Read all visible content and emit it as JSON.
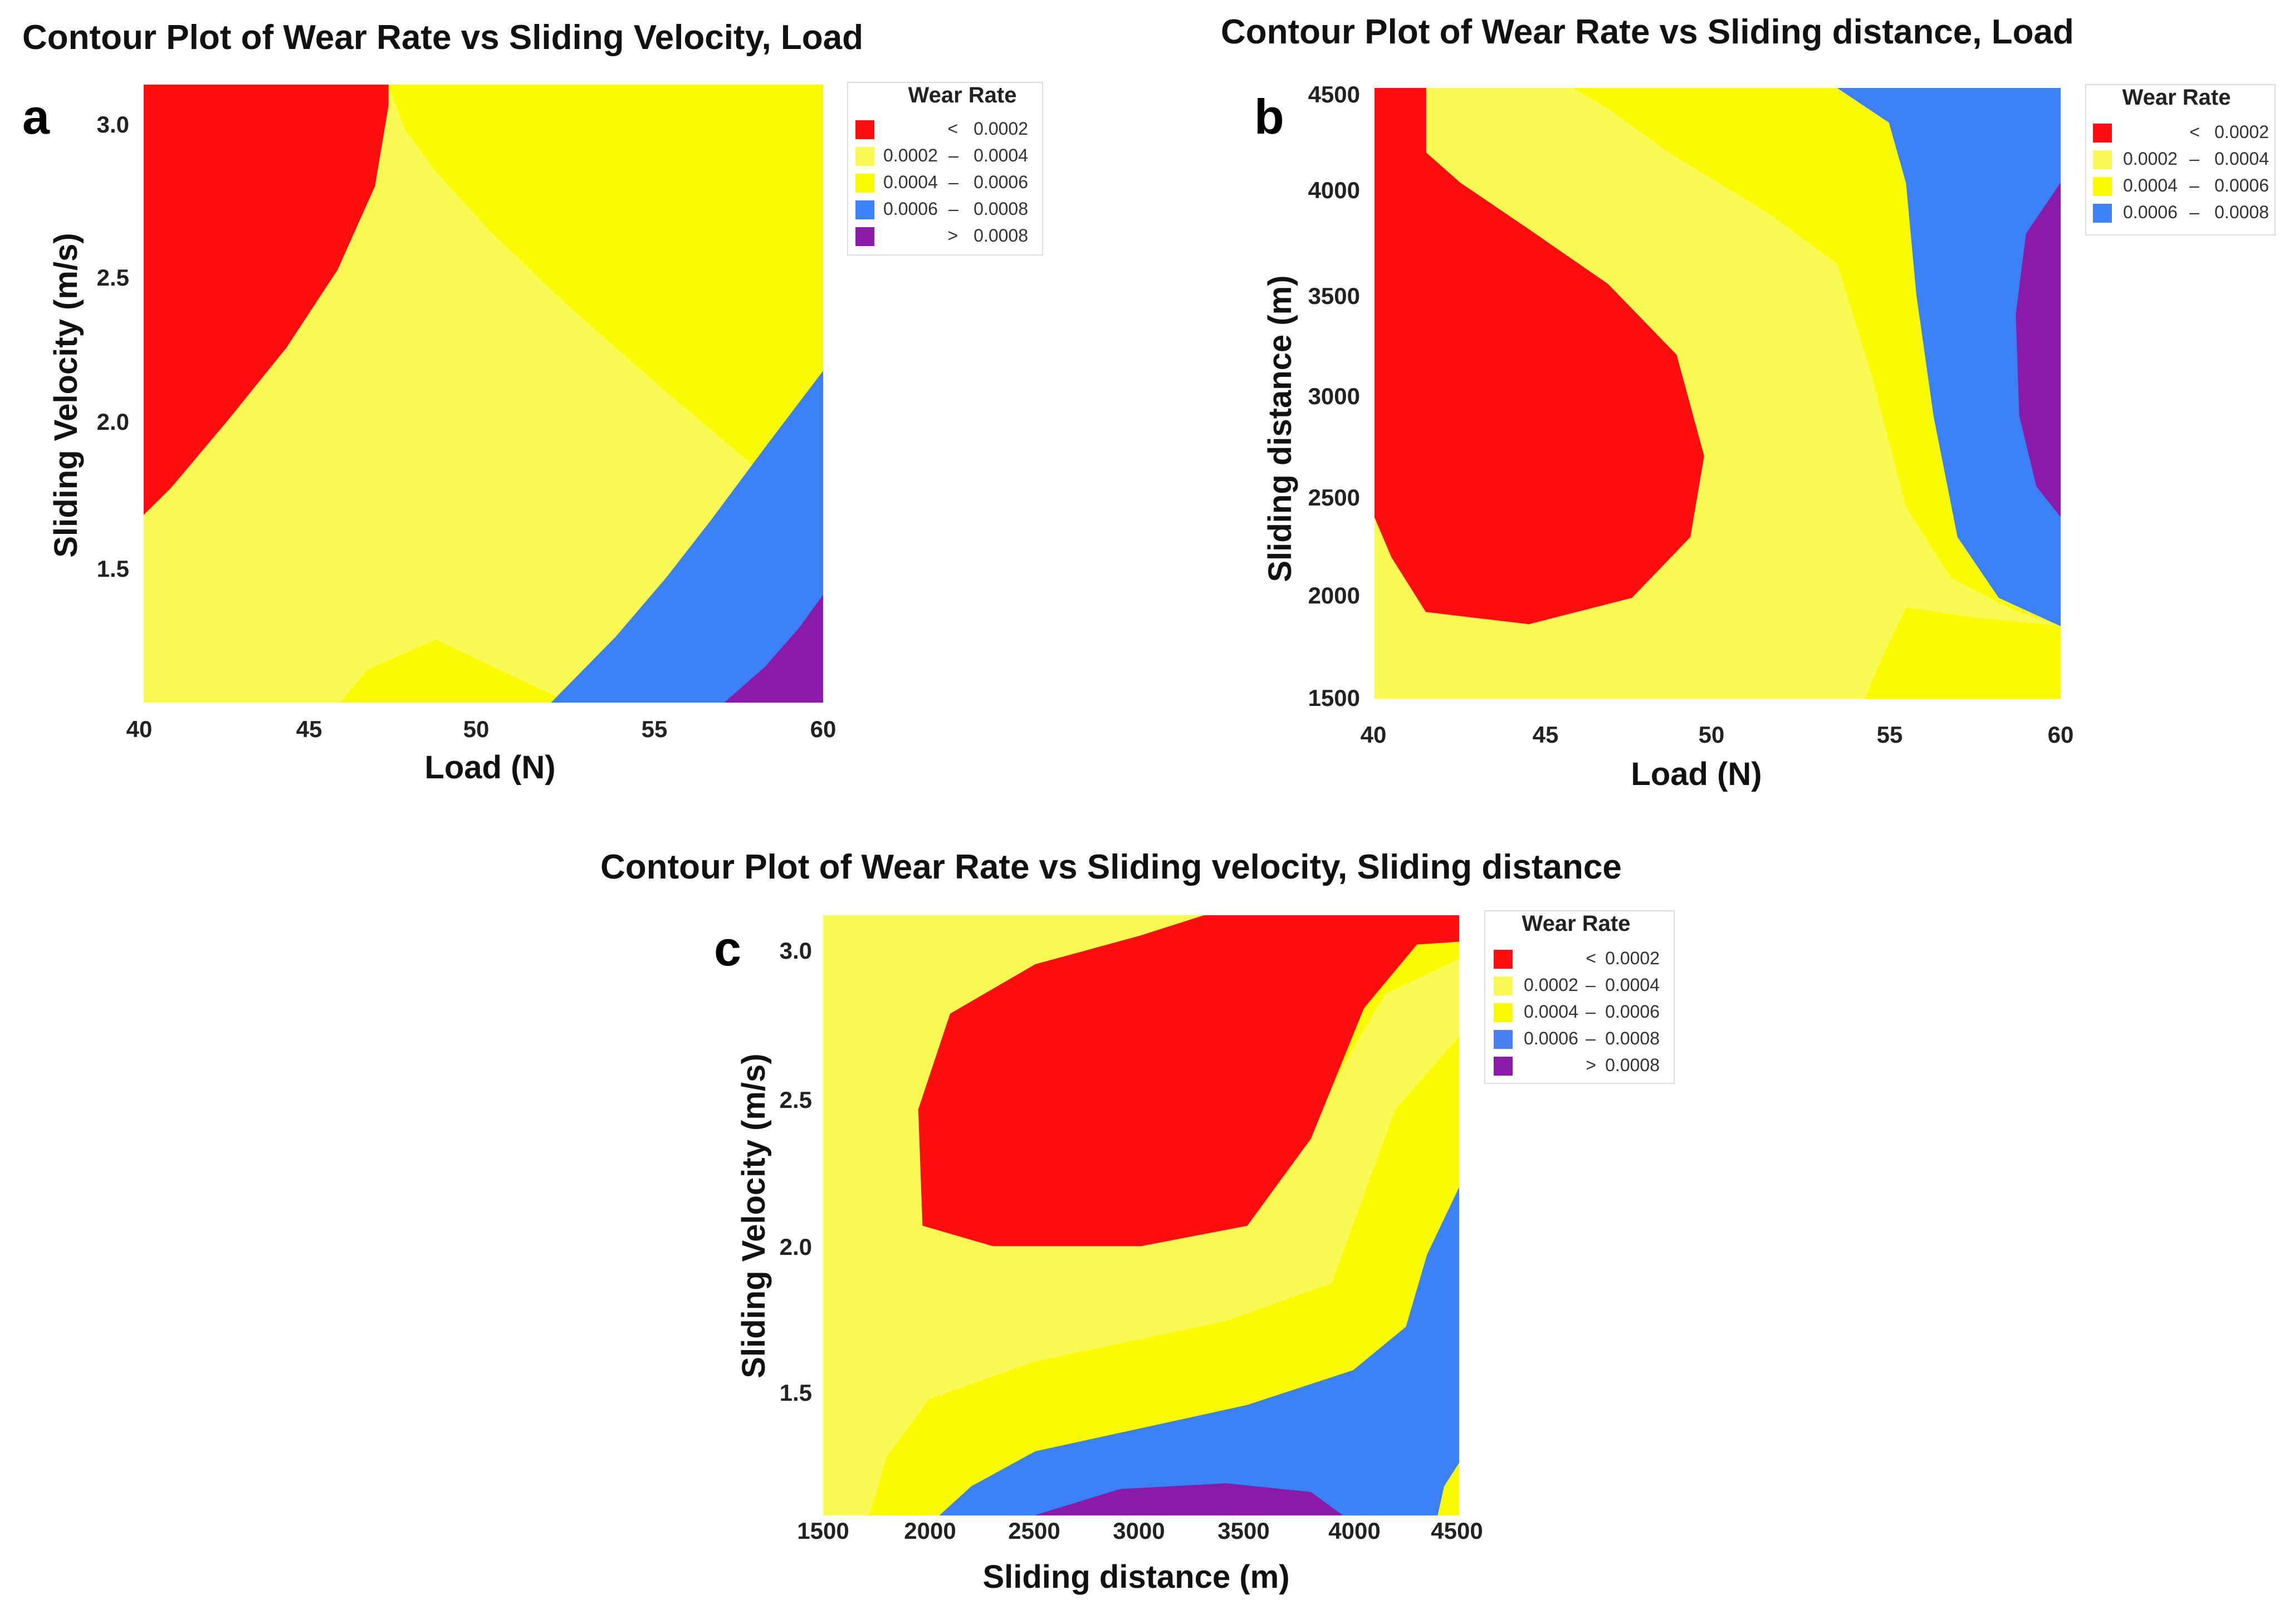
{
  "colors": {
    "lt_0002": "#ff0d0d",
    "r_0002_0004": "#fafa55",
    "r_0004_0006": "#fafa00",
    "r_0006_0008": "#3b80f5",
    "gt_0008": "#8b1aa8",
    "legend_blue_c": "#4a7ff2"
  },
  "chart_data": [
    {
      "panel": "a",
      "type": "contour",
      "title": "Contour Plot of Wear Rate vs Sliding Velocity, Load",
      "xlabel": "Load (N)",
      "ylabel": "Sliding Velocity (m/s)",
      "xlim": [
        40,
        60
      ],
      "ylim": [
        1.05,
        3.12
      ],
      "xticks": [
        "40",
        "45",
        "50",
        "55",
        "60"
      ],
      "yticks": [
        "1.5",
        "2.0",
        "2.5",
        "3.0"
      ],
      "legend": {
        "title": "Wear Rate",
        "entries": [
          {
            "lo": "<",
            "hi": "0.0002",
            "color_key": "lt_0002"
          },
          {
            "lo": "0.0002",
            "hi": "0.0004",
            "color_key": "r_0002_0004"
          },
          {
            "lo": "0.0004",
            "hi": "0.0006",
            "color_key": "r_0004_0006"
          },
          {
            "lo": "0.0006",
            "hi": "0.0008",
            "color_key": "r_0006_0008"
          },
          {
            "lo": ">",
            "hi": "0.0008",
            "color_key": "gt_0008"
          }
        ]
      },
      "regions": [
        {
          "level": "0.0002 - 0.0004",
          "color_key": "r_0002_0004",
          "points": [
            [
              40,
              1.05
            ],
            [
              60,
              1.05
            ],
            [
              60,
              3.12
            ],
            [
              40,
              3.12
            ]
          ]
        },
        {
          "level": "0.0004 - 0.0006",
          "color_key": "r_0004_0006",
          "points": [
            [
              45.8,
              1.05
            ],
            [
              60,
              1.05
            ],
            [
              60,
              3.12
            ],
            [
              47.2,
              3.12
            ],
            [
              47.7,
              2.97
            ],
            [
              48.6,
              2.83
            ],
            [
              50.2,
              2.63
            ],
            [
              52.5,
              2.38
            ],
            [
              55.3,
              2.1
            ],
            [
              58,
              1.84
            ],
            [
              60,
              1.66
            ],
            [
              60,
              3.12
            ],
            [
              60,
              1.05
            ],
            [
              52.5,
              1.05
            ],
            [
              48.6,
              1.26
            ],
            [
              46.6,
              1.16
            ]
          ]
        },
        {
          "level": "< 0.0002",
          "color_key": "lt_0002",
          "points": [
            [
              40,
              3.12
            ],
            [
              47.2,
              3.12
            ],
            [
              47.2,
              3.05
            ],
            [
              46.8,
              2.78
            ],
            [
              45.7,
              2.5
            ],
            [
              44.2,
              2.24
            ],
            [
              42.5,
              2.0
            ],
            [
              40.8,
              1.77
            ],
            [
              40,
              1.68
            ]
          ]
        },
        {
          "level": "0.0006 - 0.0008",
          "color_key": "r_0006_0008",
          "points": [
            [
              52,
              1.05
            ],
            [
              60,
              1.05
            ],
            [
              60,
              2.16
            ],
            [
              58.4,
              1.92
            ],
            [
              56.7,
              1.66
            ],
            [
              55.4,
              1.47
            ],
            [
              53.9,
              1.27
            ]
          ]
        },
        {
          "level": "> 0.0008",
          "color_key": "gt_0008",
          "points": [
            [
              57.1,
              1.05
            ],
            [
              60,
              1.05
            ],
            [
              60,
              1.41
            ],
            [
              59.3,
              1.3
            ],
            [
              58.3,
              1.17
            ]
          ]
        }
      ]
    },
    {
      "panel": "b",
      "type": "contour",
      "title": "Contour Plot of Wear Rate vs Sliding distance, Load",
      "xlabel": "Load (N)",
      "ylabel": "Sliding distance (m)",
      "xlim": [
        40,
        60
      ],
      "ylim": [
        1500,
        4520
      ],
      "xticks": [
        "40",
        "45",
        "50",
        "55",
        "60"
      ],
      "yticks": [
        "1500",
        "2000",
        "2500",
        "3000",
        "3500",
        "4000",
        "4500"
      ],
      "legend": {
        "title": "Wear Rate",
        "entries": [
          {
            "lo": "<",
            "hi": "0.0002",
            "color_key": "lt_0002"
          },
          {
            "lo": "0.0002",
            "hi": "0.0004",
            "color_key": "r_0002_0004"
          },
          {
            "lo": "0.0004",
            "hi": "0.0006",
            "color_key": "r_0004_0006"
          },
          {
            "lo": "0.0006",
            "hi": "0.0008",
            "color_key": "r_0006_0008"
          }
        ]
      },
      "regions": [
        {
          "level": "0.0002 - 0.0004",
          "color_key": "r_0002_0004",
          "points": [
            [
              40,
              1500
            ],
            [
              60,
              1500
            ],
            [
              60,
              4520
            ],
            [
              40,
              4520
            ]
          ]
        },
        {
          "level": "0.0004 - 0.0006",
          "color_key": "r_0004_0006",
          "points": [
            [
              45.8,
              4520
            ],
            [
              60,
              4520
            ],
            [
              60,
              1860
            ],
            [
              58.5,
              1950
            ],
            [
              56.8,
              2100
            ],
            [
              55.5,
              2450
            ],
            [
              54.5,
              3100
            ],
            [
              53.5,
              3650
            ],
            [
              51.5,
              3900
            ],
            [
              48.6,
              4200
            ],
            [
              46.8,
              4420
            ]
          ]
        },
        {
          "level": "0.0004 - 0.0006",
          "color_key": "r_0004_0006",
          "points": [
            [
              54.3,
              1500
            ],
            [
              60,
              1500
            ],
            [
              60,
              1860
            ],
            [
              57.5,
              1900
            ],
            [
              55.5,
              1950
            ],
            [
              54.8,
              1700
            ]
          ]
        },
        {
          "level": "< 0.0002",
          "color_key": "lt_0002",
          "points": [
            [
              40,
              4520
            ],
            [
              41.5,
              4520
            ],
            [
              41.5,
              4200
            ],
            [
              42.5,
              4050
            ],
            [
              44.5,
              3820
            ],
            [
              46.8,
              3550
            ],
            [
              48.8,
              3200
            ],
            [
              49.6,
              2700
            ],
            [
              49.2,
              2300
            ],
            [
              47.5,
              2000
            ],
            [
              44.5,
              1870
            ],
            [
              41.5,
              1930
            ],
            [
              40.5,
              2200
            ],
            [
              40,
              2400
            ]
          ]
        },
        {
          "level": "0.0006 - 0.0008",
          "color_key": "r_0006_0008",
          "points": [
            [
              53.5,
              4520
            ],
            [
              60,
              4520
            ],
            [
              60,
              1860
            ],
            [
              58.2,
              2000
            ],
            [
              57,
              2300
            ],
            [
              56.3,
              2900
            ],
            [
              55.8,
              3500
            ],
            [
              55.5,
              4050
            ],
            [
              55,
              4350
            ]
          ]
        },
        {
          "level": "> 0.0008",
          "color_key": "gt_0008",
          "points": [
            [
              60,
              4050
            ],
            [
              60,
              2400
            ],
            [
              59.3,
              2550
            ],
            [
              58.8,
              2900
            ],
            [
              58.7,
              3400
            ],
            [
              59,
              3800
            ]
          ]
        }
      ]
    },
    {
      "panel": "c",
      "type": "contour",
      "title": "Contour Plot of Wear Rate vs Sliding velocity, Sliding distance",
      "xlabel": "Sliding distance (m)",
      "ylabel": "Sliding Velocity (m/s)",
      "xlim": [
        1500,
        4500
      ],
      "ylim": [
        1.05,
        3.12
      ],
      "xticks": [
        "1500",
        "2000",
        "2500",
        "3000",
        "3500",
        "4000",
        "4500"
      ],
      "yticks": [
        "1.5",
        "2.0",
        "2.5",
        "3.0"
      ],
      "legend": {
        "title": "Wear Rate",
        "entries": [
          {
            "lo": "<",
            "hi": "0.0002",
            "color_key": "lt_0002"
          },
          {
            "lo": "0.0002",
            "hi": "0.0004",
            "color_key": "r_0002_0004"
          },
          {
            "lo": "0.0004",
            "hi": "0.0006",
            "color_key": "r_0004_0006"
          },
          {
            "lo": "0.0006",
            "hi": "0.0008",
            "color_key": "legend_blue_c"
          },
          {
            "lo": ">",
            "hi": "0.0008",
            "color_key": "gt_0008"
          }
        ]
      },
      "regions": [
        {
          "level": "0.0002 - 0.0004",
          "color_key": "r_0002_0004",
          "points": [
            [
              1500,
              1.05
            ],
            [
              4500,
              1.05
            ],
            [
              4500,
              3.12
            ],
            [
              1500,
              3.12
            ]
          ]
        },
        {
          "level": "0.0004 - 0.0006",
          "color_key": "r_0004_0006",
          "points": [
            [
              1720,
              1.05
            ],
            [
              4500,
              1.05
            ],
            [
              4500,
              2.7
            ],
            [
              4200,
              2.45
            ],
            [
              4050,
              2.15
            ],
            [
              3900,
              1.85
            ],
            [
              3400,
              1.72
            ],
            [
              2500,
              1.58
            ],
            [
              2000,
              1.45
            ],
            [
              1800,
              1.25
            ]
          ]
        },
        {
          "level": "0.0004 - 0.0006",
          "color_key": "r_0004_0006",
          "points": [
            [
              3500,
              3.12
            ],
            [
              4500,
              3.12
            ],
            [
              4500,
              2.97
            ],
            [
              4150,
              2.85
            ],
            [
              3950,
              2.6
            ],
            [
              3750,
              2.3
            ],
            [
              3500,
              2.05
            ]
          ]
        },
        {
          "level": "< 0.0002",
          "color_key": "lt_0002",
          "points": [
            [
              3500,
              3.12
            ],
            [
              4500,
              3.12
            ],
            [
              4500,
              3.03
            ],
            [
              4300,
              3.02
            ],
            [
              4050,
              2.8
            ],
            [
              3800,
              2.35
            ],
            [
              3500,
              2.05
            ],
            [
              3000,
              1.98
            ],
            [
              2300,
              1.98
            ],
            [
              1970,
              2.05
            ],
            [
              1950,
              2.45
            ],
            [
              2100,
              2.78
            ],
            [
              2500,
              2.95
            ],
            [
              3000,
              3.05
            ],
            [
              3300,
              3.12
            ]
          ]
        },
        {
          "level": "0.0006 - 0.0008",
          "color_key": "r_0006_0008",
          "points": [
            [
              2050,
              1.05
            ],
            [
              4500,
              1.05
            ],
            [
              4500,
              2.18
            ],
            [
              4350,
              1.95
            ],
            [
              4250,
              1.7
            ],
            [
              4000,
              1.55
            ],
            [
              3500,
              1.43
            ],
            [
              3000,
              1.35
            ],
            [
              2500,
              1.27
            ],
            [
              2200,
              1.15
            ]
          ]
        },
        {
          "level": "0.0004 - 0.0006",
          "color_key": "r_0004_0006",
          "points": [
            [
              4400,
              1.05
            ],
            [
              4500,
              1.05
            ],
            [
              4500,
              1.23
            ],
            [
              4430,
              1.15
            ]
          ]
        },
        {
          "level": "> 0.0008",
          "color_key": "gt_0008",
          "points": [
            [
              2500,
              1.05
            ],
            [
              3950,
              1.05
            ],
            [
              3800,
              1.13
            ],
            [
              3400,
              1.16
            ],
            [
              2900,
              1.14
            ]
          ]
        }
      ]
    }
  ]
}
